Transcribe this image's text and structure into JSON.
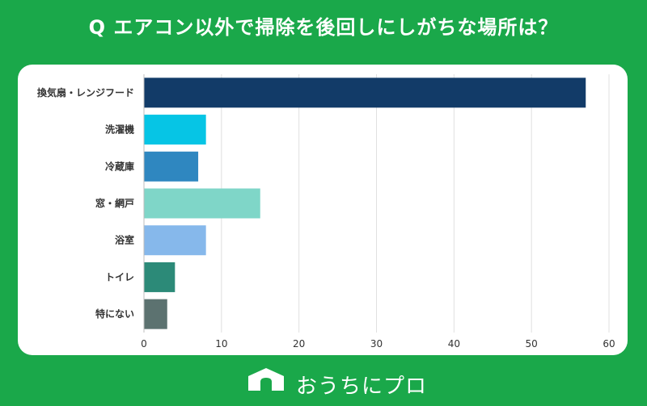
{
  "title": "Q エアコン以外で掃除を後回しにしがちな場所は？",
  "brand": {
    "logo_icon": "house-icon",
    "logo_text": "OUCHI ni PRO",
    "name": "おうちにプロ"
  },
  "colors": {
    "background": "#1aa84a",
    "card": "#ffffff",
    "grid": "#e0e0e0",
    "text": "#333333"
  },
  "chart_data": {
    "type": "bar",
    "orientation": "horizontal",
    "categories": [
      "換気扇・レンジフード",
      "洗濯機",
      "冷蔵庫",
      "窓・網戸",
      "浴室",
      "トイレ",
      "特にない"
    ],
    "values": [
      57,
      8,
      7,
      15,
      8,
      4,
      3
    ],
    "colors": [
      "#123b68",
      "#06c5e5",
      "#2f87c0",
      "#7fd6c8",
      "#86b8eb",
      "#2c8a78",
      "#5c7270"
    ],
    "title": "",
    "xlabel": "",
    "ylabel": "",
    "xlim": [
      0,
      60
    ],
    "xticks": [
      0,
      10,
      20,
      30,
      40,
      50,
      60
    ],
    "grid": true,
    "legend": "none"
  }
}
